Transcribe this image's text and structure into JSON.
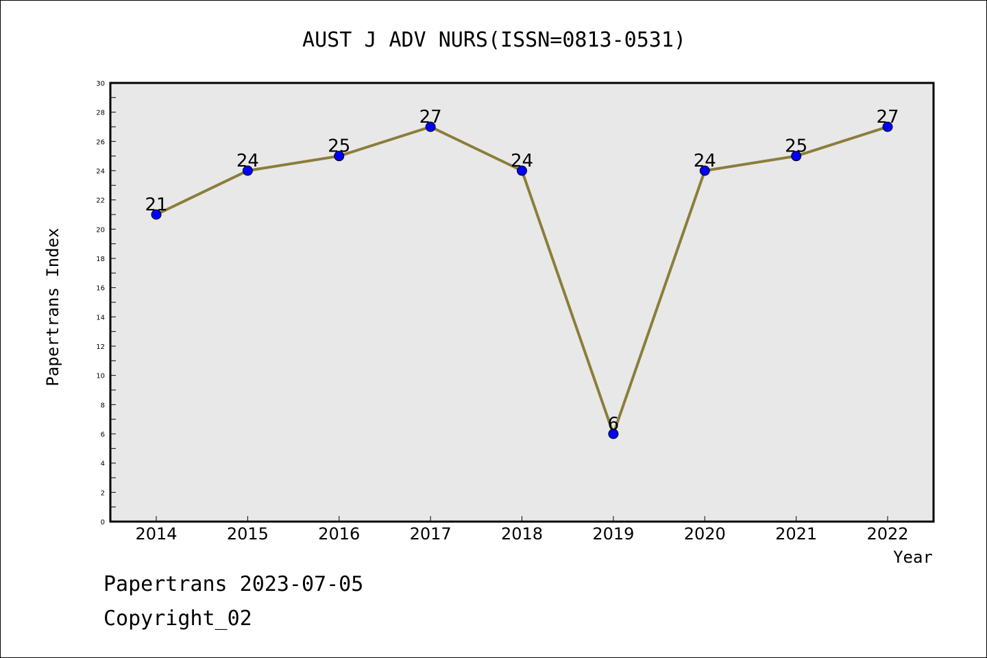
{
  "chart_data": {
    "type": "line",
    "title": "AUST J ADV NURS(ISSN=0813-0531)",
    "xlabel": "Year",
    "ylabel": "Papertrans Index",
    "categories": [
      "2014",
      "2015",
      "2016",
      "2017",
      "2018",
      "2019",
      "2020",
      "2021",
      "2022"
    ],
    "series": [
      {
        "values": [
          21,
          24,
          25,
          27,
          24,
          6,
          24,
          25,
          27
        ]
      }
    ],
    "ylim": [
      0,
      30
    ],
    "yticks": [
      0,
      2,
      4,
      6,
      8,
      10,
      12,
      14,
      16,
      18,
      20,
      22,
      24,
      26,
      28,
      30
    ],
    "grid": false,
    "data_labels": true,
    "colors": {
      "line": "#8B7D3A",
      "marker": "#0000FF",
      "plot_background": "#E8E8E8"
    }
  },
  "footer": {
    "date_line": "Papertrans 2023-07-05",
    "copyright": "Copyright_02"
  }
}
